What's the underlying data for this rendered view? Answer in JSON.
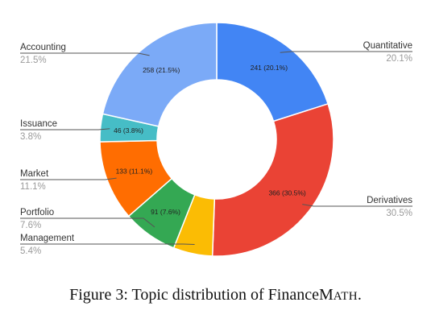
{
  "chart_data": {
    "type": "pie",
    "donut": true,
    "slices": [
      {
        "label": "Quantitative",
        "value": 241,
        "percent": "20.1%",
        "slice_text": "241 (20.1%)",
        "color": "#4285F4"
      },
      {
        "label": "Derivatives",
        "value": 366,
        "percent": "30.5%",
        "slice_text": "366 (30.5%)",
        "color": "#EA4335"
      },
      {
        "label": "Management",
        "value": 65,
        "percent": "5.4%",
        "slice_text": "",
        "color": "#FBBC04"
      },
      {
        "label": "Portfolio",
        "value": 91,
        "percent": "7.6%",
        "slice_text": "91 (7.6%)",
        "color": "#34A853"
      },
      {
        "label": "Market",
        "value": 133,
        "percent": "11.1%",
        "slice_text": "133 (11.1%)",
        "color": "#FF6D01"
      },
      {
        "label": "Issuance",
        "value": 46,
        "percent": "3.8%",
        "slice_text": "46 (3.8%)",
        "color": "#46BDC6"
      },
      {
        "label": "Accounting",
        "value": 258,
        "percent": "21.5%",
        "slice_text": "258 (21.5%)",
        "color": "#7BAAF7"
      }
    ]
  },
  "caption": {
    "prefix": "Figure 3: Topic distribution of Finance",
    "m": "M",
    "ath": "ATH",
    "suffix": "."
  }
}
